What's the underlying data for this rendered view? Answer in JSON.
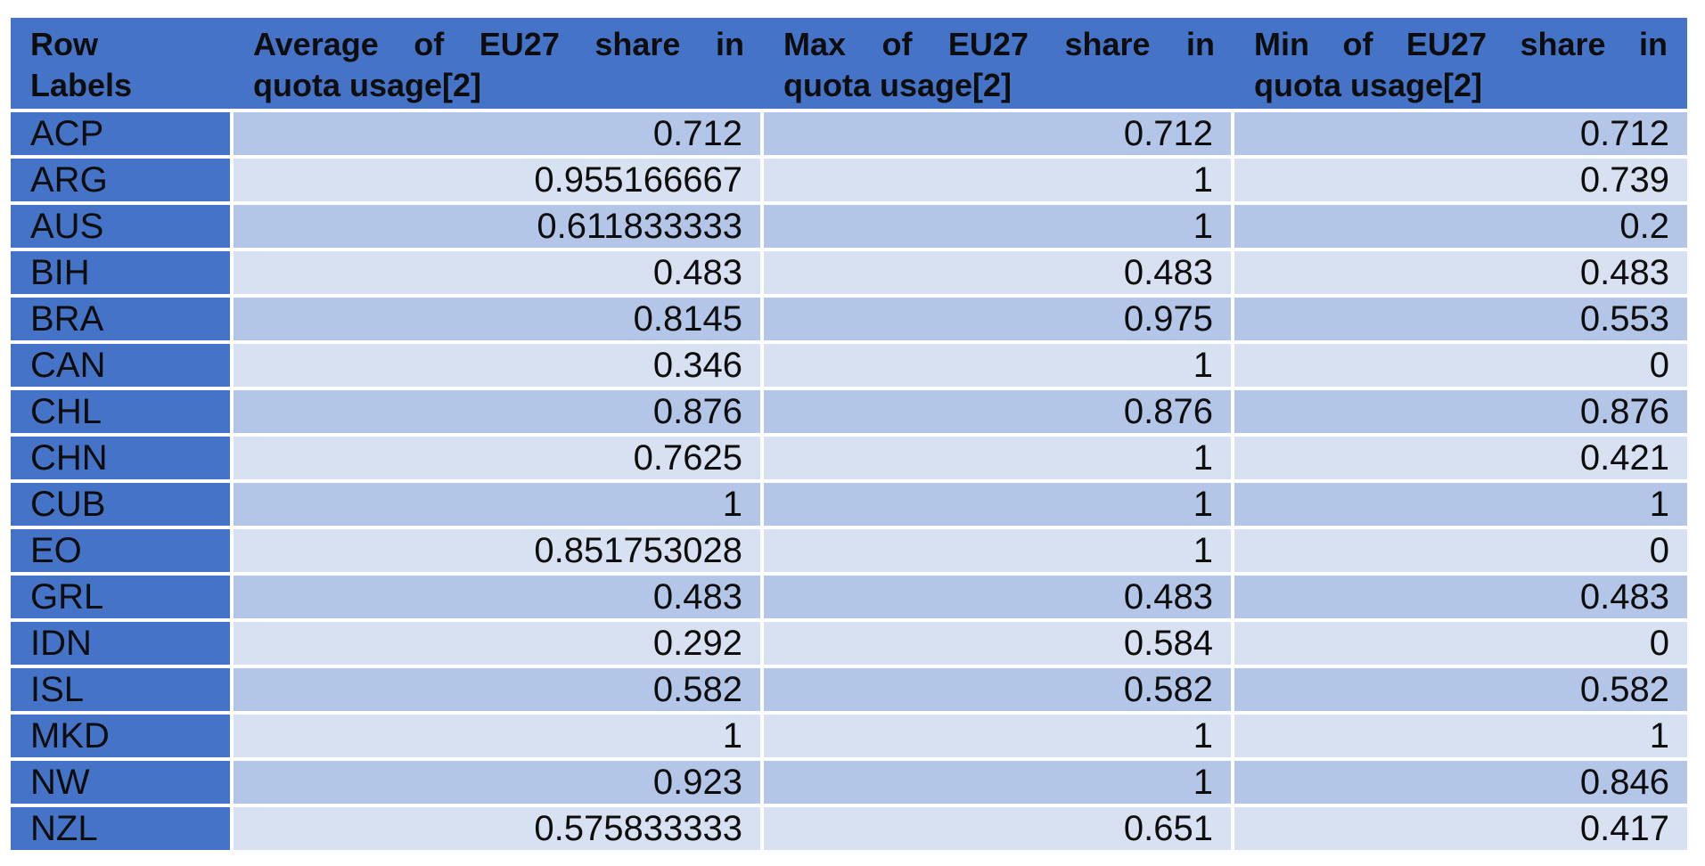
{
  "table": {
    "style": {
      "header_bg": "#4573c7",
      "label_bg": "#4573c7",
      "band_dark": "#b3c6e7",
      "band_light": "#d8e1f2",
      "text_color": "#0d0d0d",
      "separator_color": "#ffffff"
    },
    "header": [
      {
        "full": "Row Labels",
        "line1": "Row",
        "line2": "Labels"
      },
      {
        "full": "Average of EU27 share in quota usage[2]",
        "line1": "Average of EU27 share in",
        "line2": "quota usage[2]"
      },
      {
        "full": "Max of EU27 share in quota usage[2]",
        "line1": "Max of EU27 share in",
        "line2": "quota usage[2]"
      },
      {
        "full": "Min of EU27 share in quota usage[2]",
        "line1": "Min of EU27 share in",
        "line2": "quota usage[2]"
      }
    ],
    "rows": [
      {
        "label": "ACP",
        "avg": "0.712",
        "max": "0.712",
        "min": "0.712"
      },
      {
        "label": "ARG",
        "avg": "0.955166667",
        "max": "1",
        "min": "0.739"
      },
      {
        "label": "AUS",
        "avg": "0.611833333",
        "max": "1",
        "min": "0.2"
      },
      {
        "label": "BIH",
        "avg": "0.483",
        "max": "0.483",
        "min": "0.483"
      },
      {
        "label": "BRA",
        "avg": "0.8145",
        "max": "0.975",
        "min": "0.553"
      },
      {
        "label": "CAN",
        "avg": "0.346",
        "max": "1",
        "min": "0"
      },
      {
        "label": "CHL",
        "avg": "0.876",
        "max": "0.876",
        "min": "0.876"
      },
      {
        "label": "CHN",
        "avg": "0.7625",
        "max": "1",
        "min": "0.421"
      },
      {
        "label": "CUB",
        "avg": "1",
        "max": "1",
        "min": "1"
      },
      {
        "label": "EO",
        "avg": "0.851753028",
        "max": "1",
        "min": "0"
      },
      {
        "label": "GRL",
        "avg": "0.483",
        "max": "0.483",
        "min": "0.483"
      },
      {
        "label": "IDN",
        "avg": "0.292",
        "max": "0.584",
        "min": "0"
      },
      {
        "label": "ISL",
        "avg": "0.582",
        "max": "0.582",
        "min": "0.582"
      },
      {
        "label": "MKD",
        "avg": "1",
        "max": "1",
        "min": "1"
      },
      {
        "label": "NW",
        "avg": "0.923",
        "max": "1",
        "min": "0.846"
      },
      {
        "label": "NZL",
        "avg": "0.575833333",
        "max": "0.651",
        "min": "0.417"
      }
    ]
  }
}
